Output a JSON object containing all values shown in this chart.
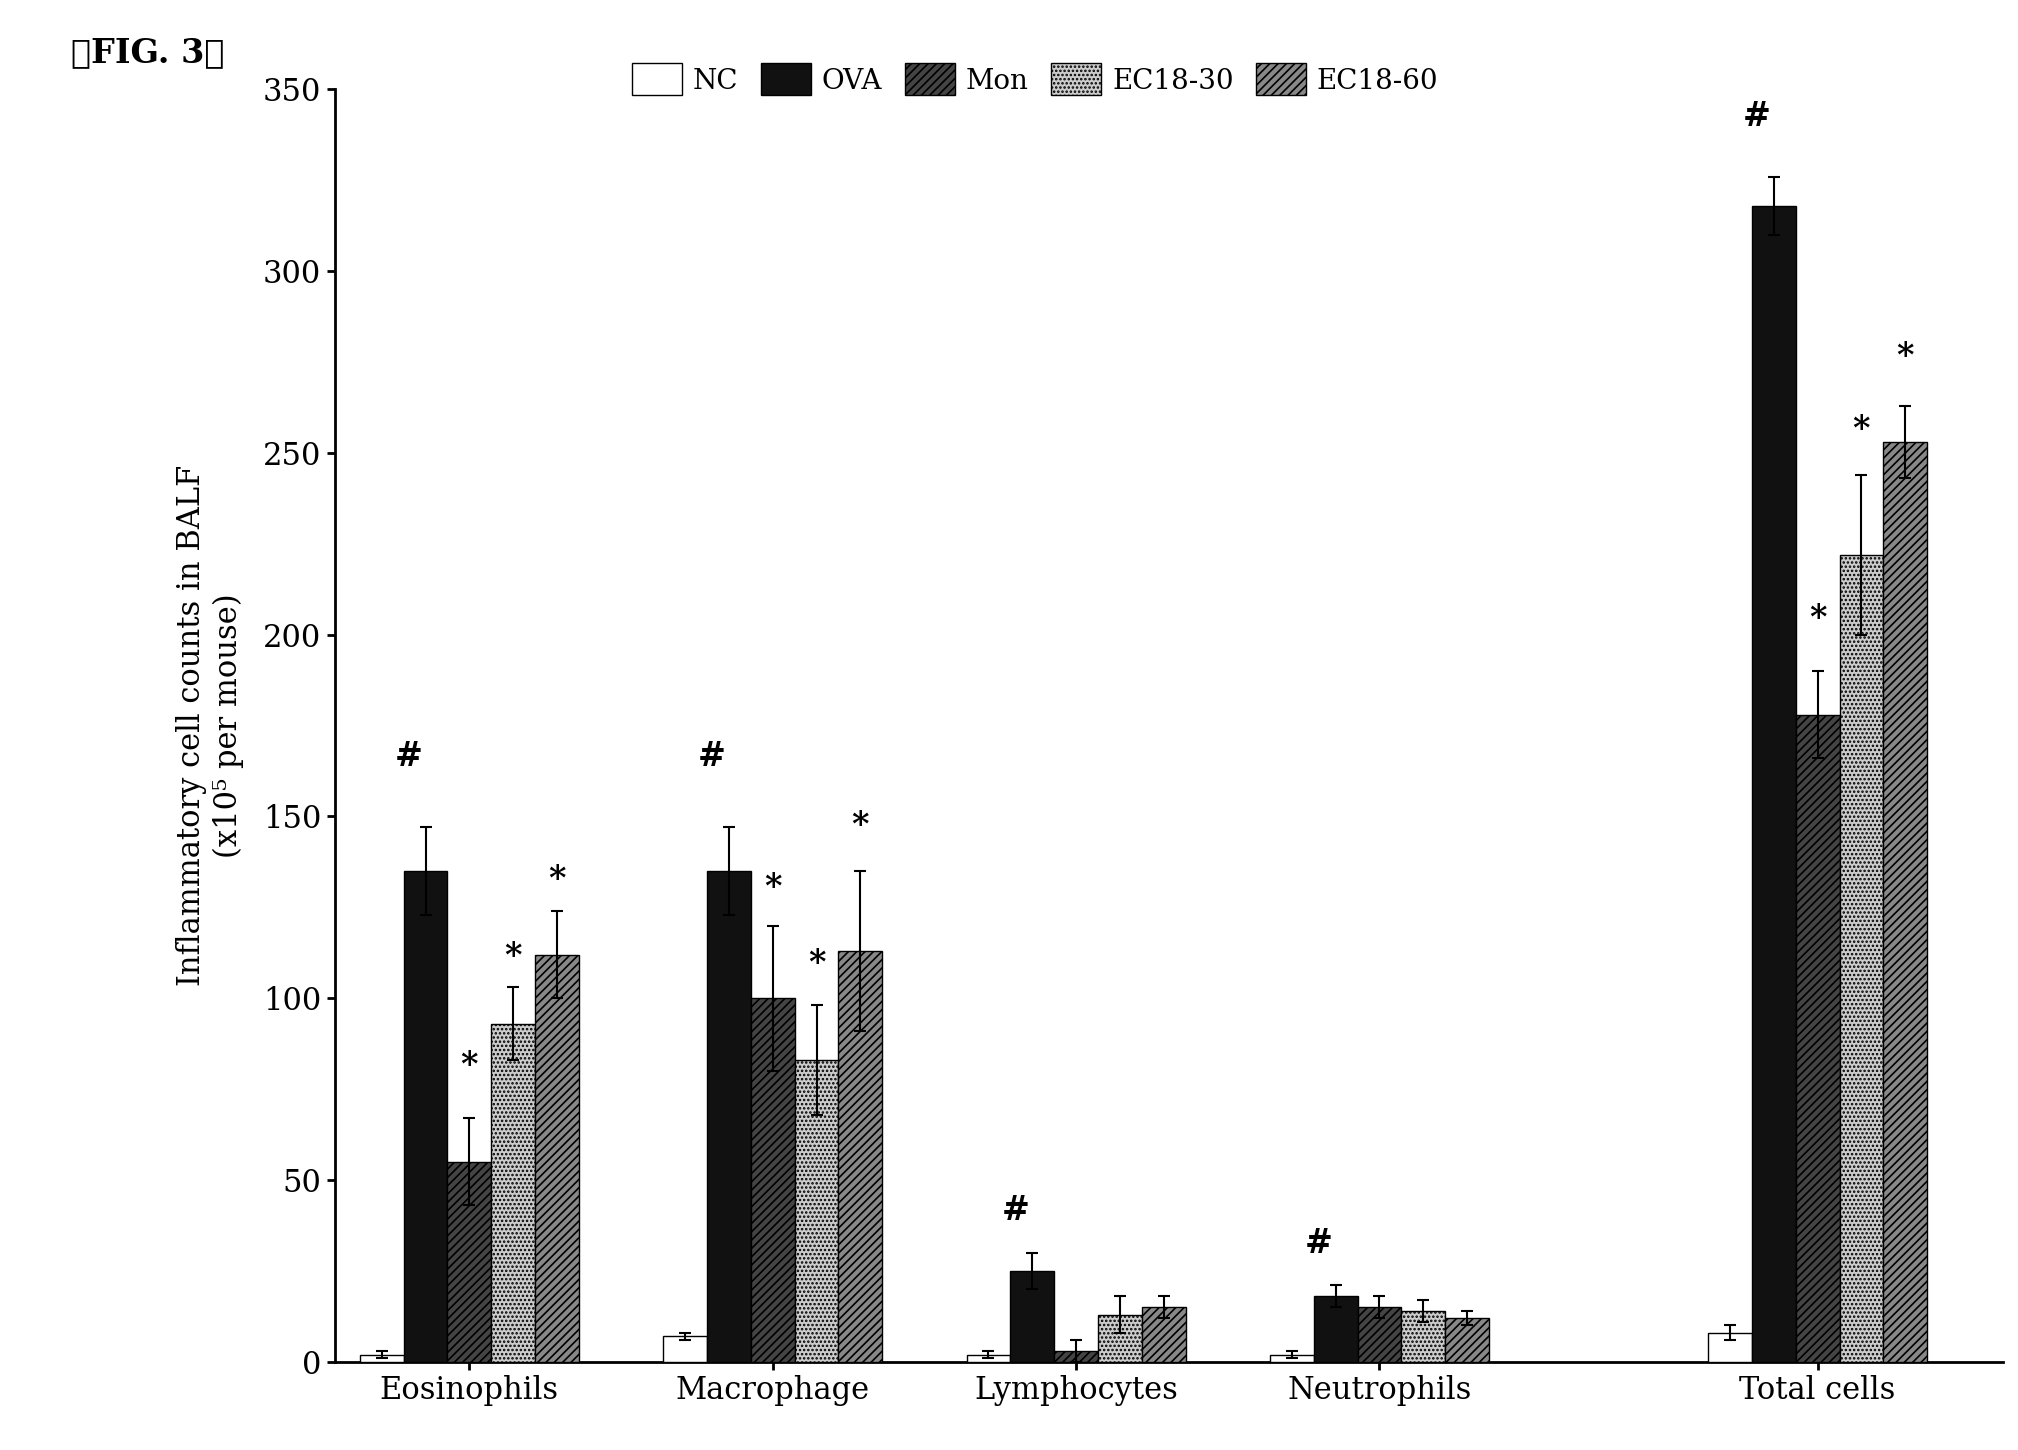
{
  "categories": [
    "Eosinophils",
    "Macrophage",
    "Lymphocytes",
    "Neutrophils",
    "Total cells"
  ],
  "groups": [
    "NC",
    "OVA",
    "Mon",
    "EC18-30",
    "EC18-60"
  ],
  "values": {
    "Eosinophils": [
      2,
      135,
      55,
      93,
      112
    ],
    "Macrophage": [
      7,
      135,
      100,
      83,
      113
    ],
    "Lymphocytes": [
      2,
      25,
      3,
      13,
      15
    ],
    "Neutrophils": [
      2,
      18,
      15,
      14,
      12
    ],
    "Total cells": [
      8,
      318,
      178,
      222,
      253
    ]
  },
  "errors": {
    "Eosinophils": [
      1,
      12,
      12,
      10,
      12
    ],
    "Macrophage": [
      1,
      12,
      20,
      15,
      22
    ],
    "Lymphocytes": [
      1,
      5,
      3,
      5,
      3
    ],
    "Neutrophils": [
      1,
      3,
      3,
      3,
      2
    ],
    "Total cells": [
      2,
      8,
      12,
      22,
      10
    ]
  },
  "ylim": [
    0,
    350
  ],
  "yticks": [
    0,
    50,
    100,
    150,
    200,
    250,
    300,
    350
  ],
  "ylabel": "Inflammatory cell counts in BALF\n(x10⁵ per mouse)",
  "figure_label": "』FIG. 3『",
  "bar_width": 0.13,
  "bg_color": "#ffffff",
  "colors": [
    "#ffffff",
    "#111111",
    "#444444",
    "#cccccc",
    "#888888"
  ],
  "hatches": [
    "",
    "",
    "////",
    "....",
    "////"
  ],
  "edge_colors": [
    "#000000",
    "#000000",
    "#000000",
    "#000000",
    "#000000"
  ]
}
